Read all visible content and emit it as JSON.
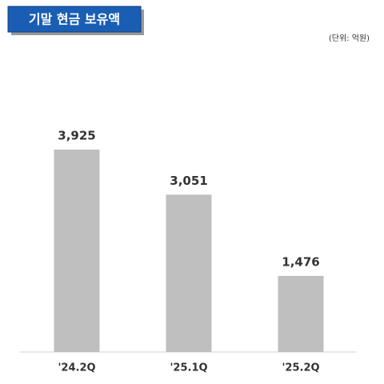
{
  "chart_data": {
    "type": "bar",
    "title": "기말 현금 보유액",
    "subtitle": "(단위: 억원)",
    "categories": [
      "'24.2Q",
      "'25.1Q",
      "'25.2Q"
    ],
    "values": [
      3925,
      3051,
      1476
    ],
    "value_labels": [
      "3,925",
      "3,051",
      "1,476"
    ],
    "color": "#bfbfbf"
  }
}
